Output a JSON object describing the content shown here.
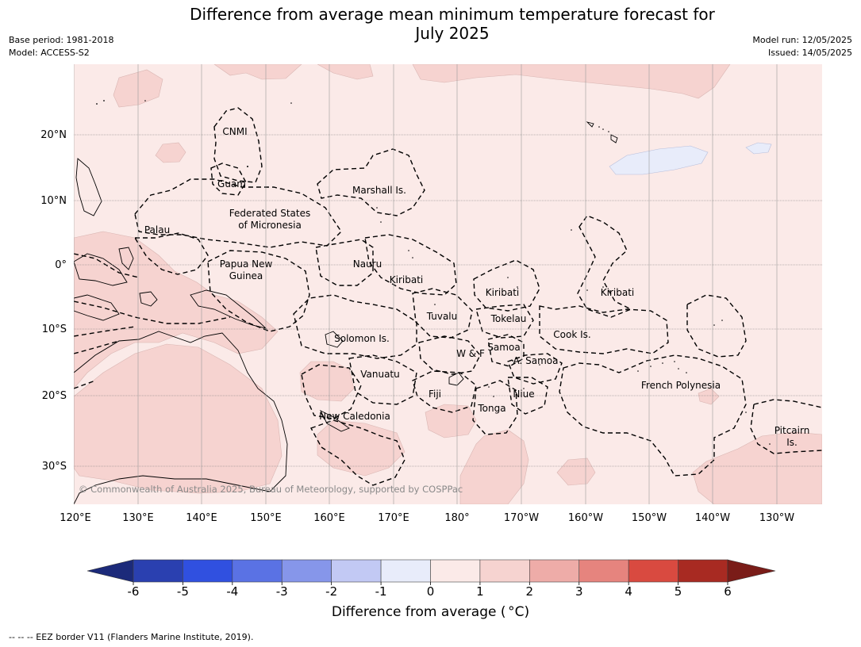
{
  "header": {
    "title_line1": "Difference from average mean minimum temperature forecast for",
    "title_line2": "July 2025",
    "base_period": "Base period: 1981-2018",
    "model": "Model: ACCESS-S2",
    "model_run": "Model run: 12/05/2025",
    "issued": "Issued: 14/05/2025"
  },
  "map": {
    "lat_labels": [
      "20°N",
      "10°N",
      "0°",
      "10°S",
      "20°S",
      "30°S"
    ],
    "lon_labels": [
      "120°E",
      "130°E",
      "140°E",
      "150°E",
      "160°E",
      "170°E",
      "180°",
      "170°W",
      "160°W",
      "150°W",
      "140°W",
      "130°W"
    ],
    "copyright": "© Commonwealth of Australia 2025, Bureau of Meteorology, supported by COSPPac",
    "places": [
      {
        "lines": [
          "CNMI"
        ]
      },
      {
        "lines": [
          "Guam"
        ]
      },
      {
        "lines": [
          "Marshall Is."
        ]
      },
      {
        "lines": [
          "Federated States",
          "of Micronesia"
        ]
      },
      {
        "lines": [
          "Palau"
        ]
      },
      {
        "lines": [
          "Papua New",
          "Guinea"
        ]
      },
      {
        "lines": [
          "Nauru"
        ]
      },
      {
        "lines": [
          "Kiribati"
        ]
      },
      {
        "lines": [
          "Kiribati"
        ]
      },
      {
        "lines": [
          "Kiribati"
        ]
      },
      {
        "lines": [
          "Tuvalu"
        ]
      },
      {
        "lines": [
          "Tokelau"
        ]
      },
      {
        "lines": [
          "Cook Is."
        ]
      },
      {
        "lines": [
          "Solomon Is."
        ]
      },
      {
        "lines": [
          "Samoa"
        ]
      },
      {
        "lines": [
          "W & F"
        ]
      },
      {
        "lines": [
          "A. Samoa"
        ]
      },
      {
        "lines": [
          "Vanuatu"
        ]
      },
      {
        "lines": [
          "Fiji"
        ]
      },
      {
        "lines": [
          "Niue"
        ]
      },
      {
        "lines": [
          "Tonga"
        ]
      },
      {
        "lines": [
          "French Polynesia"
        ]
      },
      {
        "lines": [
          "New Caledonia"
        ]
      },
      {
        "lines": [
          "Pitcairn",
          "Is."
        ]
      }
    ],
    "colors": {
      "anomaly_0_1": "#fbeae8",
      "anomaly_1_2": "#f6d3d0",
      "anomaly_m1_0": "#e8ecfa",
      "grid": "#999999",
      "eez_border": "#000000"
    }
  },
  "colorbar": {
    "ticks": [
      "-6",
      "-5",
      "-4",
      "-3",
      "-2",
      "-1",
      "0",
      "1",
      "2",
      "3",
      "4",
      "5",
      "6"
    ],
    "colors": [
      "#1c2a7a",
      "#2a40b0",
      "#3050e0",
      "#5a72e4",
      "#8696ea",
      "#c2c9f4",
      "#e8ecfa",
      "#fbeae8",
      "#f6d3d0",
      "#eeaca8",
      "#e6847e",
      "#d94a40",
      "#a82a22",
      "#7a1c18"
    ],
    "title": "Difference from average (",
    "title_unit": "°C)"
  },
  "footnote": "--  --  -- EEZ border V11 (Flanders Marine Institute, 2019)."
}
